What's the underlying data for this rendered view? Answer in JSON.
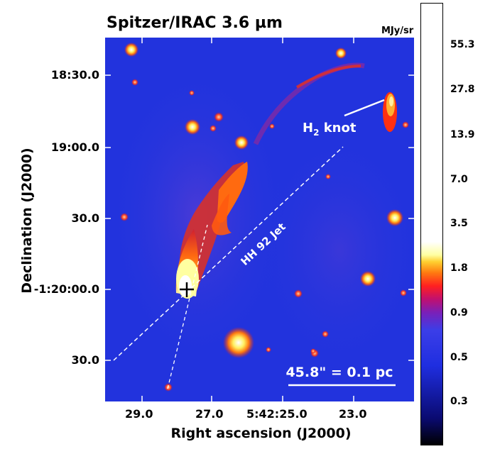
{
  "title": "Spitzer/IRAC 3.6 µm",
  "unit_label": "MJy/sr",
  "axes": {
    "x_label": "Right ascension (J2000)",
    "y_label": "Declination (J2000)",
    "x_ticks": [
      "29.0",
      "27.0",
      "5:42:25.0",
      "23.0"
    ],
    "y_ticks": [
      "18:30.0",
      "19:00.0",
      "30.0",
      "-1:20:00.0",
      "30.0"
    ]
  },
  "annotations": {
    "h2_knot": "H",
    "h2_knot_sub": "2",
    "h2_knot_suffix": " knot",
    "jet_label": "HH 92 Jet",
    "scale_bar": "45.8\" = 0.1 pc"
  },
  "colorbar": {
    "ticks": [
      "55.3",
      "27.8",
      "13.9",
      "7.0",
      "3.5",
      "1.8",
      "0.9",
      "0.5",
      "0.3"
    ]
  },
  "colors": {
    "background": "#1f35e0",
    "jet": "#ff9a2a",
    "hot_core": "#ffffff",
    "annotation": "#ffffff"
  }
}
